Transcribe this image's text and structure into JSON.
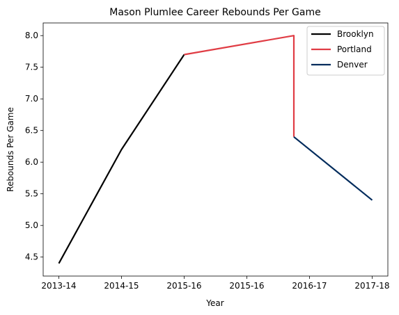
{
  "chart_data": {
    "type": "line",
    "title": "Mason Plumlee Career Rebounds Per Game",
    "xlabel": "Year",
    "ylabel": "Rebounds Per Game",
    "x_ticks": [
      "2013-14",
      "2014-15",
      "2015-16",
      "2015-16",
      "2016-17",
      "2017-18"
    ],
    "xlim": [
      -0.25,
      5.25
    ],
    "ylim": [
      4.2,
      8.2
    ],
    "y_ticks": [
      4.5,
      5.0,
      5.5,
      6.0,
      6.5,
      7.0,
      7.5,
      8.0
    ],
    "y_tick_labels": [
      "4.5",
      "5.0",
      "5.5",
      "6.0",
      "6.5",
      "7.0",
      "7.5",
      "8.0"
    ],
    "legend_position": "top-right",
    "grid": false,
    "series": [
      {
        "name": "Brooklyn",
        "color": "#000000",
        "x": [
          0,
          1.0,
          2.0
        ],
        "y": [
          4.4,
          6.2,
          7.7
        ]
      },
      {
        "name": "Portland",
        "color": "#e03c44",
        "x": [
          2.0,
          3.75,
          3.75
        ],
        "y": [
          7.7,
          8.0,
          6.4
        ]
      },
      {
        "name": "Denver",
        "color": "#002b5c",
        "x": [
          3.75,
          5.0
        ],
        "y": [
          6.4,
          5.4
        ]
      }
    ]
  }
}
